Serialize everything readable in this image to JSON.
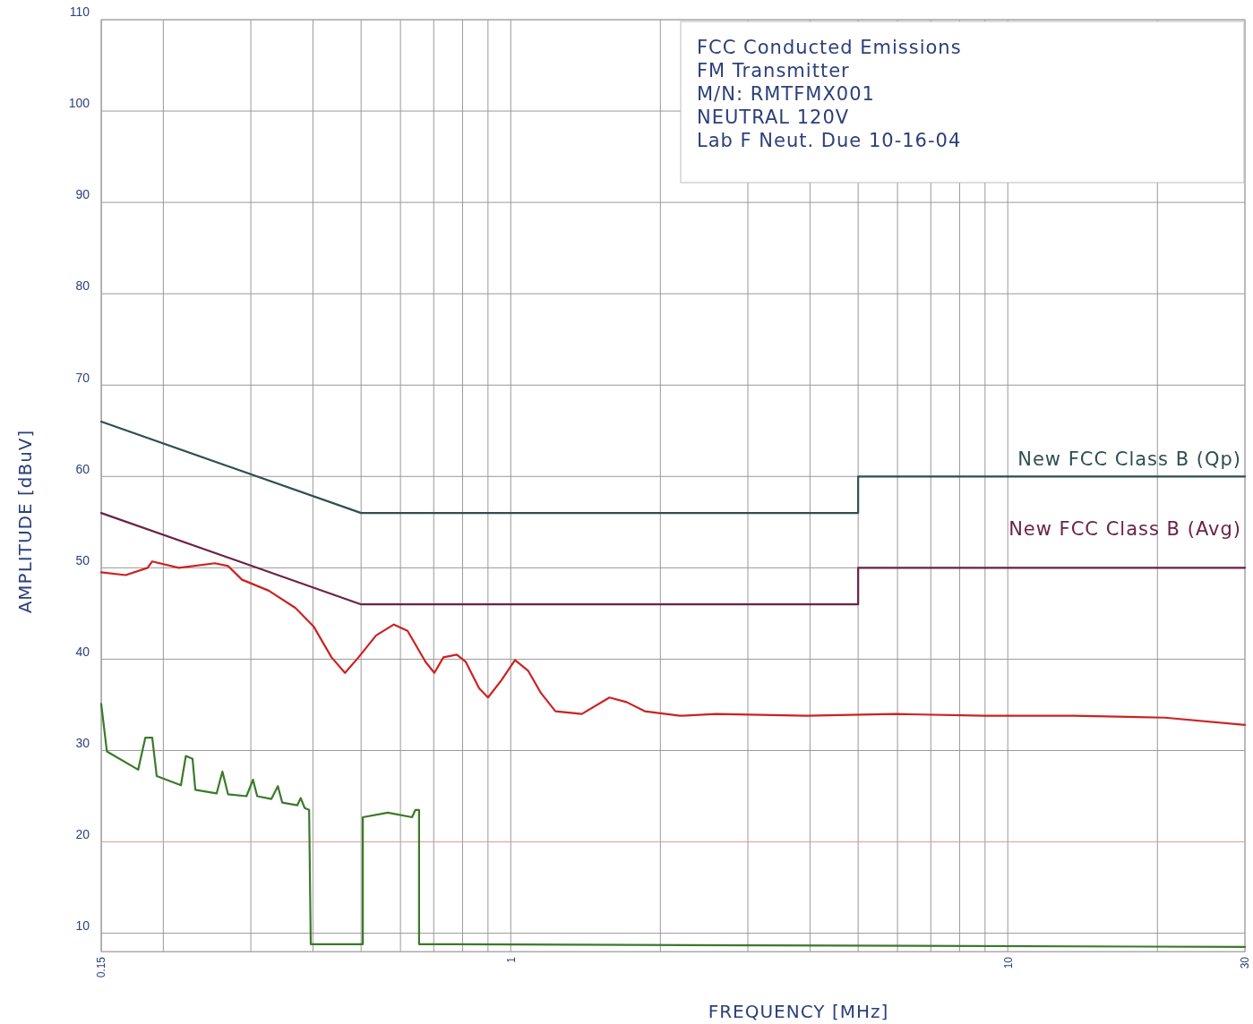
{
  "chart_data": {
    "type": "line",
    "xlabel": "FREQUENCY [MHz]",
    "ylabel": "AMPLITUDE [dBuV]",
    "log": "x",
    "grid": true,
    "legend": false,
    "marker": "none",
    "line_style": "solid",
    "xlim": [
      0.15,
      30
    ],
    "ylim": [
      8,
      110
    ],
    "xticks": [
      0.15,
      {
        "value": 0.2,
        "label": null
      },
      {
        "value": 0.3,
        "label": null
      },
      {
        "value": 0.4,
        "label": null
      },
      {
        "value": 0.5,
        "label": null
      },
      {
        "value": 0.6,
        "label": null
      },
      {
        "value": 0.7,
        "label": null
      },
      {
        "value": 0.8,
        "label": null
      },
      {
        "value": 0.9,
        "label": null
      },
      1,
      {
        "value": 2,
        "label": null
      },
      {
        "value": 3,
        "label": null
      },
      {
        "value": 4,
        "label": null
      },
      {
        "value": 5,
        "label": null
      },
      {
        "value": 6,
        "label": null
      },
      {
        "value": 7,
        "label": null
      },
      {
        "value": 8,
        "label": null
      },
      {
        "value": 9,
        "label": null
      },
      10,
      {
        "value": 20,
        "label": null
      },
      30
    ],
    "yticks": [
      10,
      20,
      30,
      40,
      50,
      60,
      70,
      80,
      90,
      100,
      110
    ],
    "ref_lines": [
      {
        "axis": "y",
        "value": 20,
        "color": "#e89a9a"
      }
    ],
    "annotations": [
      "FCC Conducted Emissions",
      "FM Transmitter",
      "M/N: RMTFMX001",
      "NEUTRAL 120V",
      "Lab F Neut. Due 10-16-04"
    ],
    "series": [
      {
        "name": "New FCC Class B (Qp)",
        "color": "#2f4f4f",
        "x": [
          0.15,
          0.5,
          5,
          5,
          30
        ],
        "values": [
          66,
          56,
          56,
          60,
          60
        ]
      },
      {
        "name": "New FCC Class B (Avg)",
        "color": "#6b2345",
        "x": [
          0.15,
          0.5,
          5,
          5,
          30
        ],
        "values": [
          56,
          46,
          46,
          50,
          50
        ]
      },
      {
        "color": "#cc2222",
        "x": [
          0.15,
          0.168,
          0.186,
          0.19,
          0.215,
          0.254,
          0.27,
          0.288,
          0.326,
          0.369,
          0.401,
          0.436,
          0.464,
          0.494,
          0.536,
          0.582,
          0.62,
          0.674,
          0.702,
          0.732,
          0.779,
          0.812,
          0.864,
          0.9,
          0.958,
          1.02,
          1.085,
          1.15,
          1.23,
          1.39,
          1.58,
          1.71,
          1.86,
          2.19,
          2.59,
          3.93,
          5.94,
          9.0,
          13.6,
          20.7,
          30
        ],
        "values": [
          49.5,
          49.2,
          50.0,
          50.7,
          50.0,
          50.5,
          50.2,
          48.7,
          47.5,
          45.6,
          43.6,
          40.2,
          38.5,
          40.2,
          42.6,
          43.8,
          43.1,
          39.7,
          38.5,
          40.2,
          40.5,
          39.7,
          36.8,
          35.8,
          37.7,
          39.9,
          38.7,
          36.3,
          34.3,
          34.0,
          35.8,
          35.3,
          34.3,
          33.8,
          34.0,
          33.8,
          34.0,
          33.8,
          33.8,
          33.6,
          32.8
        ]
      },
      {
        "color": "#3a7a2a",
        "x": [
          0.15,
          0.154,
          0.178,
          0.184,
          0.19,
          0.194,
          0.217,
          0.222,
          0.229,
          0.232,
          0.256,
          0.263,
          0.27,
          0.294,
          0.303,
          0.309,
          0.33,
          0.34,
          0.347,
          0.372,
          0.378,
          0.385,
          0.393,
          0.396,
          0.504,
          0.504,
          0.566,
          0.633,
          0.643,
          0.654,
          0.654,
          30
        ],
        "values": [
          35.1,
          29.9,
          27.9,
          31.4,
          31.4,
          27.2,
          26.2,
          29.4,
          29.1,
          25.7,
          25.3,
          27.7,
          25.2,
          25.0,
          26.8,
          25.0,
          24.7,
          26.1,
          24.3,
          24.0,
          24.8,
          23.7,
          23.5,
          8.8,
          8.8,
          22.7,
          23.2,
          22.7,
          23.5,
          23.5,
          8.8,
          8.5
        ]
      }
    ]
  }
}
